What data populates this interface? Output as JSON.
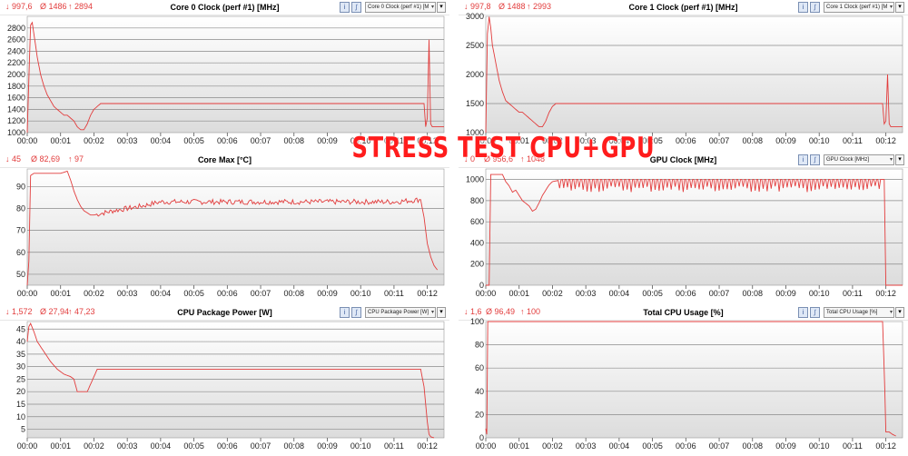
{
  "banner": "STRESS TEST CPU+GPU",
  "colors": {
    "line": "#e23c3c",
    "grid": "#8a8a8a",
    "plot_top": "#ffffff",
    "plot_bottom": "#dcdcdc"
  },
  "icons": {
    "toggle_a": "graph-mode-icon",
    "toggle_b": "graph-filter-icon",
    "menu": "menu-arrow-icon"
  },
  "panels": [
    {
      "title": "Core 0 Clock (perf #1) [MHz]",
      "stat_min": "↓ 997,6",
      "stat_avg": "Ø 1486",
      "stat_max": "↑ 2894",
      "sensor": "Core 0 Clock (perf #1) [M",
      "chart_data": {
        "type": "line",
        "ylim": [
          1000,
          3000
        ],
        "yticks": [
          1000,
          1200,
          1400,
          1600,
          1800,
          2000,
          2200,
          2400,
          2600,
          2800
        ],
        "xlim": [
          0,
          12.5
        ],
        "xticks": [
          "00:00",
          "00:01",
          "00:02",
          "00:03",
          "00:04",
          "00:05",
          "00:06",
          "00:07",
          "00:08",
          "00:09",
          "00:10",
          "00:11",
          "00:12"
        ],
        "series": [
          {
            "x": [
              0,
              0.1,
              0.15,
              0.2,
              0.3,
              0.4,
              0.5,
              0.6,
              0.7,
              0.8,
              0.9,
              1.0,
              1.1,
              1.2,
              1.3,
              1.4,
              1.5,
              1.6,
              1.7,
              1.8,
              1.9,
              2.0,
              2.1,
              2.2,
              3,
              4,
              5,
              6,
              7,
              8,
              9,
              10,
              11,
              11.9,
              11.95,
              12.0,
              12.05,
              12.1,
              12.15,
              12.2,
              12.5
            ],
            "y": [
              1000,
              2850,
              2894,
              2700,
              2300,
              2000,
              1800,
              1650,
              1550,
              1450,
              1400,
              1350,
              1300,
              1300,
              1250,
              1200,
              1100,
              1050,
              1050,
              1150,
              1300,
              1400,
              1450,
              1500,
              1500,
              1500,
              1500,
              1500,
              1500,
              1500,
              1500,
              1500,
              1500,
              1500,
              1100,
              1250,
              2600,
              1150,
              1100,
              1100,
              1100
            ]
          }
        ]
      }
    },
    {
      "title": "Core 1 Clock (perf #1) [MHz]",
      "stat_min": "↓ 997,8",
      "stat_avg": "Ø 1488",
      "stat_max": "↑ 2993",
      "sensor": "Core 1 Clock (perf #1) [M",
      "chart_data": {
        "type": "line",
        "ylim": [
          1000,
          3000
        ],
        "yticks": [
          1000,
          1500,
          2000,
          2500,
          3000
        ],
        "xlim": [
          0,
          12.5
        ],
        "xticks": [
          "00:00",
          "00:01",
          "00:02",
          "00:03",
          "00:04",
          "00:05",
          "00:06",
          "00:07",
          "00:08",
          "00:09",
          "00:10",
          "00:11",
          "00:12"
        ],
        "series": [
          {
            "x": [
              0,
              0.05,
              0.1,
              0.15,
              0.2,
              0.3,
              0.4,
              0.5,
              0.6,
              0.7,
              0.8,
              0.9,
              1.0,
              1.1,
              1.2,
              1.3,
              1.4,
              1.5,
              1.6,
              1.7,
              1.8,
              1.9,
              2.0,
              2.1,
              2.2,
              3,
              4,
              5,
              6,
              7,
              8,
              9,
              10,
              11,
              11.9,
              11.95,
              12.0,
              12.05,
              12.1,
              12.15,
              12.2,
              12.5
            ],
            "y": [
              1000,
              2700,
              2993,
              2800,
              2500,
              2200,
              1900,
              1700,
              1550,
              1500,
              1450,
              1400,
              1350,
              1350,
              1300,
              1250,
              1200,
              1150,
              1100,
              1100,
              1200,
              1350,
              1450,
              1500,
              1500,
              1500,
              1500,
              1500,
              1500,
              1500,
              1500,
              1500,
              1500,
              1500,
              1500,
              1150,
              1200,
              2000,
              1150,
              1100,
              1100,
              1100
            ]
          }
        ]
      }
    },
    {
      "title": "Core Max [°C]",
      "stat_min": "↓ 45",
      "stat_avg": "Ø 82,69",
      "stat_max": "↑ 97",
      "sensor": "",
      "chart_data": {
        "type": "line",
        "ylim": [
          45,
          98
        ],
        "yticks": [
          50,
          60,
          70,
          80,
          90
        ],
        "xlim": [
          0,
          12.5
        ],
        "xticks": [
          "00:00",
          "00:01",
          "00:02",
          "00:03",
          "00:04",
          "00:05",
          "00:06",
          "00:07",
          "00:08",
          "00:09",
          "00:10",
          "00:11",
          "00:12"
        ],
        "series": [
          {
            "x": [
              0,
              0.05,
              0.1,
              0.2,
              0.5,
              1.0,
              1.2,
              1.3,
              1.4,
              1.5,
              1.6,
              1.7,
              1.8,
              1.9,
              2.0,
              2.3,
              2.6,
              3.0,
              3.4,
              3.7,
              4.0,
              4.5,
              5,
              6,
              7,
              8,
              9,
              10,
              11,
              11.8,
              11.9,
              12.0,
              12.1,
              12.2,
              12.3
            ],
            "y": [
              45,
              56,
              95,
              96,
              96,
              96,
              97,
              93,
              88,
              84,
              81,
              79,
              78,
              77,
              77,
              78,
              79,
              80,
              81,
              82,
              83,
              83,
              83,
              83,
              83,
              83,
              83,
              83,
              83,
              84,
              76,
              64,
              58,
              54,
              52
            ]
          }
        ],
        "jitter": 1.2
      }
    },
    {
      "title": "GPU Clock [MHz]",
      "stat_min": "↓ 0",
      "stat_avg": "Ø 956,6",
      "stat_max": "↑ 1048",
      "sensor": "GPU Clock [MHz]",
      "chart_data": {
        "type": "line",
        "ylim": [
          0,
          1100
        ],
        "yticks": [
          0,
          200,
          400,
          600,
          800,
          1000
        ],
        "xlim": [
          0,
          12.5
        ],
        "xticks": [
          "00:00",
          "00:01",
          "00:02",
          "00:03",
          "00:04",
          "00:05",
          "00:06",
          "00:07",
          "00:08",
          "00:09",
          "00:10",
          "00:11",
          "00:12"
        ],
        "series": [
          {
            "x": [
              0,
              0.1,
              0.15,
              0.2,
              0.5,
              0.6,
              0.7,
              0.8,
              0.9,
              1.0,
              1.1,
              1.3,
              1.4,
              1.5,
              1.6,
              1.7,
              1.8,
              1.9,
              2.0,
              2.3,
              2.6,
              3,
              4,
              5,
              6,
              7,
              8,
              9,
              10,
              11,
              11.8,
              11.95,
              12.0,
              12.1,
              12.5
            ],
            "y": [
              0,
              0,
              1048,
              1048,
              1048,
              980,
              940,
              880,
              900,
              850,
              800,
              750,
              700,
              720,
              780,
              850,
              900,
              950,
              980,
              1000,
              1000,
              1000,
              1000,
              1000,
              1000,
              1000,
              1000,
              1000,
              1000,
              1000,
              1000,
              1000,
              0,
              0,
              0
            ]
          }
        ],
        "sawtooth": [
          2.2,
          11.9
        ]
      }
    },
    {
      "title": "CPU Package Power [W]",
      "stat_min": "↓ 1,572",
      "stat_avg": "Ø 27,94",
      "stat_max": "↑ 47,23",
      "sensor": "CPU Package Power [W]",
      "chart_data": {
        "type": "line",
        "ylim": [
          1.572,
          48
        ],
        "yticks": [
          5,
          10,
          15,
          20,
          25,
          30,
          35,
          40,
          45
        ],
        "xlim": [
          0,
          12.5
        ],
        "xticks": [
          "00:00",
          "00:01",
          "00:02",
          "00:03",
          "00:04",
          "00:05",
          "00:06",
          "00:07",
          "00:08",
          "00:09",
          "00:10",
          "00:11",
          "00:12"
        ],
        "series": [
          {
            "x": [
              0,
              0.05,
              0.1,
              0.2,
              0.3,
              0.5,
              0.7,
              0.9,
              1.1,
              1.3,
              1.4,
              1.5,
              1.6,
              1.8,
              2.0,
              2.1,
              2.2,
              3,
              4,
              5,
              6,
              7,
              8,
              9,
              10,
              11,
              11.8,
              11.9,
              12.0,
              12.05,
              12.1,
              12.2
            ],
            "y": [
              40,
              46,
              47.23,
              44,
              40,
              36,
              32,
              29,
              27,
              26,
              25,
              20,
              20,
              20,
              26,
              29,
              29,
              29,
              29,
              29,
              29,
              29,
              29,
              29,
              29,
              29,
              29,
              22,
              8,
              3,
              2,
              1.6
            ]
          }
        ]
      }
    },
    {
      "title": "Total CPU Usage [%]",
      "stat_min": "↓ 1,6",
      "stat_avg": "Ø 96,49",
      "stat_max": "↑ 100",
      "sensor": "Total CPU Usage [%]",
      "chart_data": {
        "type": "line",
        "ylim": [
          0,
          100
        ],
        "yticks": [
          0,
          20,
          40,
          60,
          80,
          100
        ],
        "xlim": [
          0,
          12.5
        ],
        "xticks": [
          "00:00",
          "00:01",
          "00:02",
          "00:03",
          "00:04",
          "00:05",
          "00:06",
          "00:07",
          "00:08",
          "00:09",
          "00:10",
          "00:11",
          "00:12"
        ],
        "series": [
          {
            "x": [
              0,
              0.03,
              0.06,
              0.1,
              0.2,
              1,
              2,
              3,
              4,
              5,
              6,
              7,
              8,
              9,
              10,
              11,
              11.9,
              11.97,
              12.0,
              12.1,
              12.2,
              12.3
            ],
            "y": [
              8,
              3,
              100,
              100,
              100,
              100,
              100,
              100,
              100,
              100,
              100,
              100,
              100,
              100,
              100,
              100,
              100,
              40,
              5,
              5,
              3,
              1.6
            ]
          }
        ]
      }
    }
  ]
}
